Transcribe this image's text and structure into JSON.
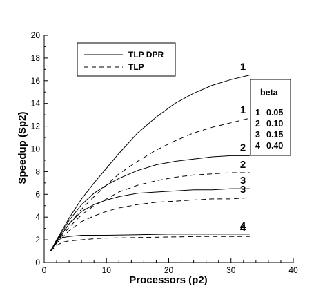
{
  "chart_data": {
    "type": "line",
    "xlabel": "Processors (p2)",
    "ylabel": "Speedup (Sp2)",
    "xlim": [
      0,
      40
    ],
    "ylim": [
      0,
      20
    ],
    "xticks": [
      0,
      10,
      20,
      30,
      40
    ],
    "yticks": [
      0,
      2,
      4,
      6,
      8,
      10,
      12,
      14,
      16,
      18,
      20
    ],
    "grid": false,
    "legend_position": "top-left",
    "legend": [
      {
        "label": "TLP DPR",
        "style": "solid"
      },
      {
        "label": "TLP",
        "style": "dashed"
      }
    ],
    "beta_table": {
      "header": "beta",
      "rows": [
        {
          "id": "1",
          "value": "0.05"
        },
        {
          "id": "2",
          "value": "0.10"
        },
        {
          "id": "3",
          "value": "0.15"
        },
        {
          "id": "4",
          "value": "0.40"
        }
      ]
    },
    "series": [
      {
        "name": "TLP DPR",
        "style": "solid",
        "label": "1",
        "x": [
          1,
          2,
          4,
          6,
          8,
          10,
          12,
          15,
          18,
          21,
          24,
          27,
          30,
          33
        ],
        "y": [
          1.0,
          2.0,
          3.9,
          5.6,
          7.0,
          8.3,
          9.6,
          11.4,
          12.8,
          14.0,
          14.9,
          15.6,
          16.1,
          16.5
        ]
      },
      {
        "name": "TLP",
        "style": "dashed",
        "label": "1",
        "x": [
          1,
          2,
          4,
          6,
          8,
          10,
          12,
          15,
          18,
          21,
          24,
          27,
          30,
          33
        ],
        "y": [
          1.0,
          1.9,
          3.4,
          4.7,
          5.8,
          6.8,
          7.8,
          8.9,
          9.9,
          10.7,
          11.4,
          11.9,
          12.3,
          12.7
        ]
      },
      {
        "name": "TLP DPR",
        "style": "solid",
        "label": "2",
        "x": [
          1,
          2,
          4,
          6,
          8,
          10,
          12,
          15,
          18,
          21,
          24,
          27,
          30,
          33
        ],
        "y": [
          1.0,
          1.9,
          3.7,
          5.1,
          6.1,
          6.8,
          7.4,
          8.1,
          8.6,
          8.9,
          9.1,
          9.3,
          9.4,
          9.4
        ]
      },
      {
        "name": "TLP",
        "style": "dashed",
        "label": "2",
        "x": [
          1,
          2,
          4,
          6,
          8,
          10,
          12,
          15,
          18,
          21,
          24,
          27,
          30,
          33
        ],
        "y": [
          1.0,
          1.8,
          3.1,
          4.2,
          5.0,
          5.6,
          6.2,
          6.8,
          7.2,
          7.5,
          7.7,
          7.8,
          7.9,
          7.9
        ]
      },
      {
        "name": "TLP DPR",
        "style": "solid",
        "label": "3",
        "x": [
          1,
          2,
          4,
          6,
          8,
          10,
          12,
          15,
          18,
          21,
          24,
          27,
          30,
          33
        ],
        "y": [
          1.0,
          1.8,
          3.4,
          4.5,
          5.1,
          5.5,
          5.8,
          6.1,
          6.2,
          6.3,
          6.4,
          6.4,
          6.5,
          6.5
        ]
      },
      {
        "name": "TLP",
        "style": "dashed",
        "label": "3",
        "x": [
          1,
          2,
          4,
          6,
          8,
          10,
          12,
          15,
          18,
          21,
          24,
          27,
          30,
          33
        ],
        "y": [
          1.0,
          1.7,
          2.8,
          3.6,
          4.1,
          4.5,
          4.8,
          5.1,
          5.3,
          5.4,
          5.5,
          5.6,
          5.6,
          5.7
        ]
      },
      {
        "name": "TLP DPR",
        "style": "solid",
        "label": "4",
        "x": [
          1,
          2,
          3,
          4,
          6,
          8,
          10,
          15,
          20,
          25,
          30,
          33
        ],
        "y": [
          1.0,
          1.9,
          2.2,
          2.3,
          2.4,
          2.4,
          2.4,
          2.45,
          2.5,
          2.5,
          2.5,
          2.5
        ]
      },
      {
        "name": "TLP",
        "style": "dashed",
        "label": "4",
        "x": [
          1,
          2,
          3,
          4,
          6,
          8,
          10,
          15,
          20,
          25,
          30,
          33
        ],
        "y": [
          1.0,
          1.5,
          1.8,
          1.9,
          2.0,
          2.1,
          2.15,
          2.2,
          2.25,
          2.3,
          2.3,
          2.3
        ]
      }
    ]
  }
}
